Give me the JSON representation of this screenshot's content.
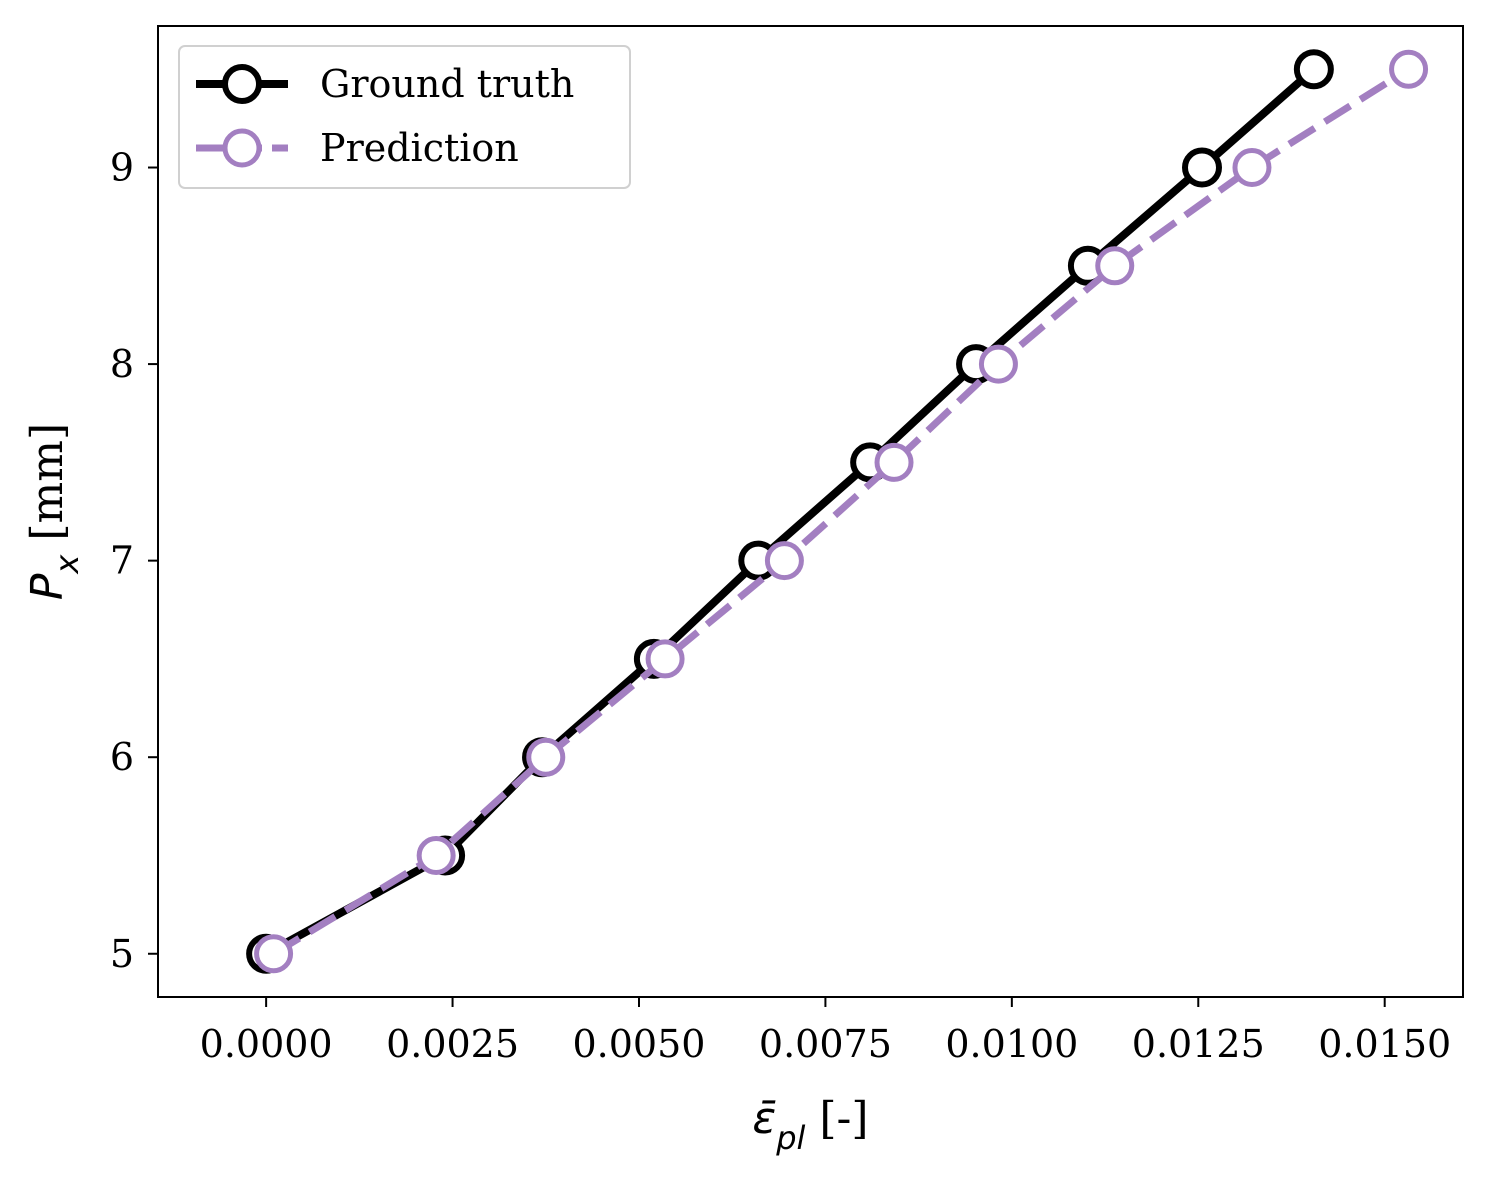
{
  "chart_data": {
    "type": "line",
    "xlabel": {
      "symbol": "ε̄",
      "subscript": "pl",
      "unit": " [-]"
    },
    "ylabel": {
      "symbol": "P",
      "subscript": "x",
      "unit": " [mm]"
    },
    "xlim": [
      -0.00145,
      0.01605
    ],
    "ylim": [
      4.78,
      9.72
    ],
    "x_ticks": [
      0.0,
      0.0025,
      0.005,
      0.0075,
      0.01,
      0.0125,
      0.015
    ],
    "x_tick_labels": [
      "0.0000",
      "0.0025",
      "0.0050",
      "0.0075",
      "0.0100",
      "0.0125",
      "0.0150"
    ],
    "y_ticks": [
      5,
      6,
      7,
      8,
      9
    ],
    "y_tick_labels": [
      "5",
      "6",
      "7",
      "8",
      "9"
    ],
    "grid": false,
    "legend_position": "top-left",
    "series": [
      {
        "name": "Ground truth",
        "color": "#000000",
        "line_style": "solid",
        "marker": "open-circle",
        "x": [
          0.0,
          0.0024,
          0.0037,
          0.0052,
          0.0066,
          0.0081,
          0.00952,
          0.01102,
          0.01255,
          0.01405
        ],
        "y": [
          5.0,
          5.5,
          6.0,
          6.5,
          7.0,
          7.5,
          8.0,
          8.5,
          9.0,
          9.5
        ]
      },
      {
        "name": "Prediction",
        "color": "#a37fc1",
        "line_style": "dashed",
        "marker": "open-circle",
        "x": [
          0.0001,
          0.00228,
          0.00375,
          0.00535,
          0.00695,
          0.00842,
          0.00982,
          0.01138,
          0.01322,
          0.01532
        ],
        "y": [
          5.0,
          5.5,
          6.0,
          6.5,
          7.0,
          7.5,
          8.0,
          8.5,
          9.0,
          9.5
        ]
      }
    ]
  }
}
